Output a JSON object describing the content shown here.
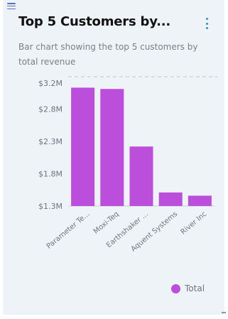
{
  "card": {
    "title": "Top 5 Customers by...",
    "subtitle": "Bar chart showing the top 5 customers by total revenue",
    "menu_icon": "hamburger-menu-icon",
    "more_icon": "kebab-more-icon"
  },
  "chart_data": {
    "type": "bar",
    "categories": [
      "Parameter Te...",
      "Moxi-Teq",
      "Earthshaker ...",
      "Aquent Systems",
      "River Inc"
    ],
    "series": [
      {
        "name": "Total",
        "values": [
          3.13,
          3.11,
          2.22,
          1.51,
          1.46
        ],
        "color": "#bb4fdc"
      }
    ],
    "ylim": [
      1.3,
      3.2
    ],
    "yticks": [
      {
        "value": 3.2,
        "label": "$3.2M"
      },
      {
        "value": 2.8,
        "label": "$2.8M"
      },
      {
        "value": 2.3,
        "label": "$2.3M"
      },
      {
        "value": 1.8,
        "label": "$1.8M"
      },
      {
        "value": 1.3,
        "label": "$1.3M"
      }
    ],
    "grid": "dashed top line only",
    "legend_position": "bottom-right"
  },
  "legend": {
    "label": "Total"
  }
}
